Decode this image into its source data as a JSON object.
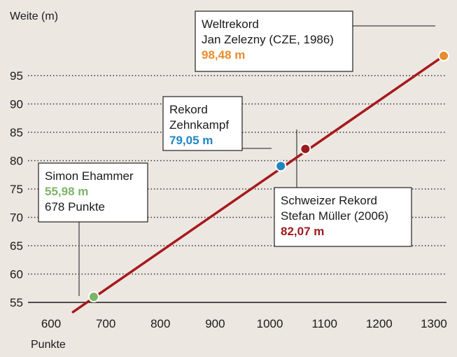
{
  "chart_data": {
    "type": "line",
    "xlabel": "Punkte",
    "ylabel": "Weite (m)",
    "xlim": [
      600,
      1320
    ],
    "ylim": [
      53,
      98.5
    ],
    "x_ticks": [
      "600",
      "700",
      "800",
      "900",
      "1000",
      "1100",
      "1200",
      "1300"
    ],
    "y_ticks": [
      "55",
      "60",
      "65",
      "70",
      "75",
      "80",
      "85",
      "90",
      "95"
    ],
    "grid": "horizontal dotted",
    "series": [
      {
        "x": [
          640,
          1318
        ],
        "y": [
          53.3,
          98.48
        ],
        "color": "#a6191d"
      }
    ],
    "annotations": [
      {
        "id": "weltrekord",
        "lines": [
          "Weltrekord",
          "Jan Zelezny (CZE, 1986)"
        ],
        "value": "98,48 m",
        "x": 1318,
        "y": 98.48,
        "color": "#e88d2d"
      },
      {
        "id": "zehnkampf",
        "lines": [
          "Rekord",
          "Zehnkampf"
        ],
        "value": "79,05 m",
        "x": 1020,
        "y": 79.05,
        "color": "#1f86c4"
      },
      {
        "id": "schweizer",
        "lines": [
          "Schweizer Rekord",
          "Stefan Müller (2006)"
        ],
        "value": "82,07 m",
        "x": 1065,
        "y": 82.07,
        "color": "#9c1a1c"
      },
      {
        "id": "ehammer",
        "lines": [
          "Simon Ehammer"
        ],
        "value": "55,98 m",
        "extra": "678 Punkte",
        "x": 678,
        "y": 55.98,
        "color": "#7cb566"
      }
    ]
  }
}
